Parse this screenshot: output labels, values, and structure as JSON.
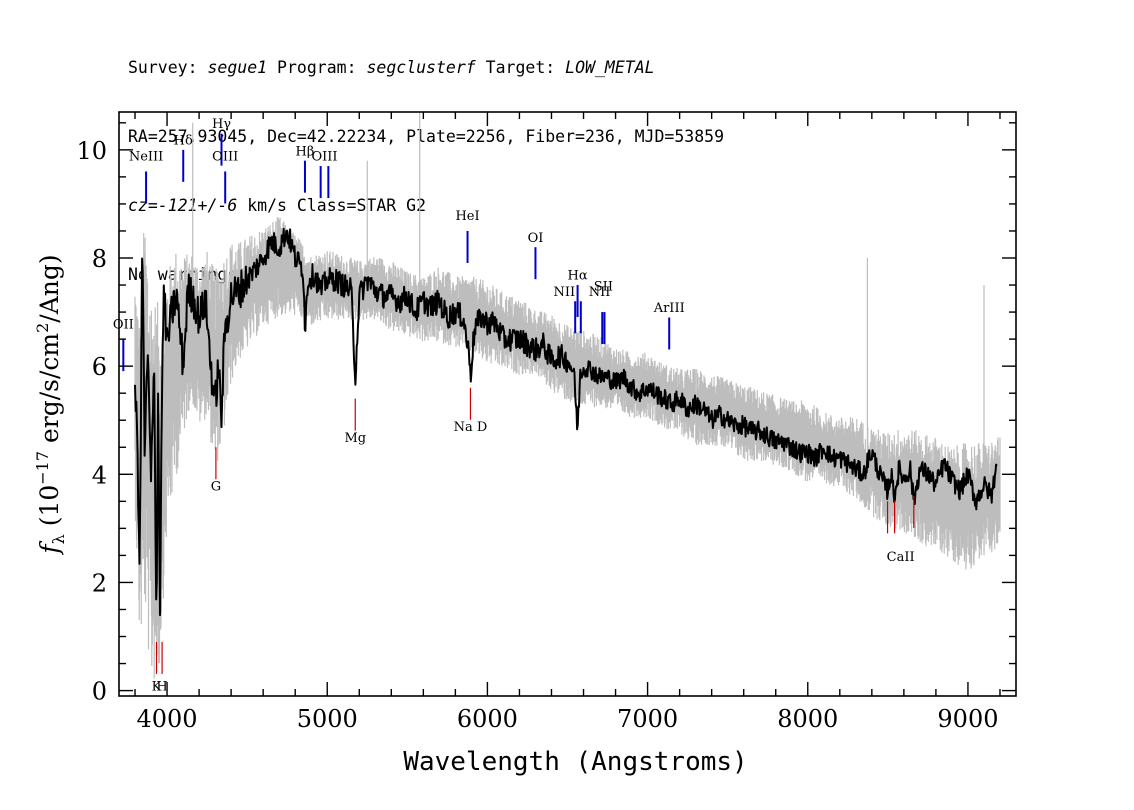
{
  "header": {
    "survey_label": "Survey:",
    "survey": "segue1",
    "program_label": "Program:",
    "program": "segclusterf",
    "target_label": "Target:",
    "target": "LOW_METAL",
    "line2": "RA=257.93045, Dec=42.22234, Plate=2256, Fiber=236, MJD=53859",
    "cz": "cz=-121+/-6",
    "cz_rest": "km/s Class=STAR G2",
    "line4": "No warnings."
  },
  "chart_data": {
    "type": "line",
    "xlabel": "Wavelength (Angstroms)",
    "ylabel_html": "f<tspan font-style='italic'>λ</tspan>",
    "ylabel": "fλ (10^-17 erg/s/cm^2/Ang)",
    "xlim": [
      3700,
      9300
    ],
    "ylim": [
      -0.1,
      10.7
    ],
    "xticks": [
      4000,
      5000,
      6000,
      7000,
      8000,
      9000
    ],
    "yticks": [
      0,
      2,
      4,
      6,
      8,
      10
    ],
    "xtick_labels": [
      "4000",
      "5000",
      "6000",
      "7000",
      "8000",
      "9000"
    ],
    "ytick_labels": [
      "0",
      "2",
      "4",
      "6",
      "8",
      "10"
    ],
    "series": [
      {
        "color": "#bdbdbd",
        "role": "error-envelope",
        "x": [
          3800,
          3830,
          3860,
          3900,
          3950,
          4000,
          4050,
          4100,
          4150,
          4200,
          4250,
          4300,
          4350,
          4400,
          4450,
          4500,
          4600,
          4700,
          4800,
          4900,
          5000,
          5100,
          5200,
          5300,
          5400,
          5500,
          5600,
          5700,
          5800,
          5900,
          6000,
          6100,
          6200,
          6300,
          6400,
          6500,
          6600,
          6700,
          6800,
          6900,
          7000,
          7100,
          7200,
          7300,
          7400,
          7500,
          7600,
          7700,
          7800,
          7900,
          8000,
          8100,
          8200,
          8300,
          8400,
          8500,
          8600,
          8700,
          8800,
          8900,
          9000,
          9100,
          9200
        ],
        "hi": [
          7.6,
          6.6,
          8.6,
          7.2,
          6.8,
          7.5,
          8.0,
          7.9,
          8.0,
          7.8,
          8.0,
          7.6,
          7.9,
          8.2,
          8.2,
          8.3,
          8.5,
          8.7,
          8.4,
          8.0,
          8.1,
          8.0,
          7.9,
          8.0,
          7.9,
          7.7,
          7.6,
          7.8,
          7.6,
          7.6,
          7.5,
          7.3,
          7.2,
          7.0,
          6.9,
          6.7,
          6.6,
          6.5,
          6.3,
          6.2,
          6.2,
          6.0,
          5.9,
          5.9,
          5.8,
          5.7,
          5.6,
          5.5,
          5.4,
          5.3,
          5.3,
          5.1,
          5.0,
          5.0,
          4.8,
          4.7,
          4.8,
          4.7,
          4.6,
          4.4,
          4.5,
          4.5,
          4.6
        ],
        "lo": [
          3.6,
          1.0,
          1.8,
          0.4,
          0.5,
          3.2,
          4.0,
          4.8,
          5.5,
          5.0,
          5.2,
          4.2,
          4.8,
          5.8,
          6.2,
          6.4,
          6.8,
          7.0,
          7.0,
          6.8,
          6.9,
          6.9,
          6.9,
          6.9,
          6.7,
          6.6,
          6.5,
          6.5,
          6.4,
          6.3,
          6.1,
          6.0,
          5.9,
          5.9,
          5.6,
          5.4,
          5.3,
          5.3,
          5.2,
          5.1,
          5.1,
          4.9,
          4.8,
          4.6,
          4.6,
          4.5,
          4.3,
          4.3,
          4.2,
          4.1,
          3.9,
          3.9,
          3.8,
          3.6,
          3.3,
          3.1,
          3.0,
          2.8,
          2.7,
          2.5,
          2.3,
          2.6,
          2.7
        ]
      },
      {
        "color": "#000000",
        "role": "flux",
        "x": [
          3800,
          3815,
          3830,
          3845,
          3860,
          3880,
          3900,
          3920,
          3933,
          3945,
          3955,
          3968,
          3980,
          4000,
          4030,
          4060,
          4101,
          4130,
          4160,
          4200,
          4240,
          4280,
          4300,
          4320,
          4340,
          4360,
          4400,
          4450,
          4500,
          4550,
          4600,
          4650,
          4700,
          4750,
          4800,
          4850,
          4861,
          4880,
          4920,
          4960,
          5000,
          5050,
          5100,
          5150,
          5175,
          5200,
          5250,
          5300,
          5350,
          5400,
          5450,
          5500,
          5550,
          5600,
          5650,
          5700,
          5750,
          5800,
          5850,
          5890,
          5896,
          5920,
          5960,
          6000,
          6050,
          6100,
          6150,
          6200,
          6250,
          6300,
          6350,
          6400,
          6450,
          6500,
          6540,
          6563,
          6580,
          6620,
          6660,
          6700,
          6750,
          6800,
          6850,
          6900,
          6950,
          7000,
          7050,
          7100,
          7150,
          7200,
          7250,
          7300,
          7350,
          7400,
          7450,
          7500,
          7550,
          7600,
          7650,
          7700,
          7750,
          7800,
          7850,
          7900,
          7950,
          8000,
          8050,
          8100,
          8150,
          8200,
          8250,
          8300,
          8350,
          8380,
          8400,
          8450,
          8498,
          8520,
          8542,
          8570,
          8600,
          8640,
          8662,
          8700,
          8750,
          8800,
          8850,
          8900,
          8950,
          9000,
          9050,
          9100,
          9150,
          9180
        ],
        "y": [
          5.7,
          4.5,
          2.2,
          8.5,
          4.5,
          6.2,
          3.8,
          6.1,
          1.2,
          5.8,
          1.1,
          5.5,
          7.4,
          6.4,
          7.0,
          7.3,
          6.0,
          7.4,
          7.3,
          6.9,
          7.2,
          5.8,
          5.3,
          6.0,
          5.1,
          6.6,
          7.3,
          7.4,
          7.6,
          7.8,
          8.0,
          8.3,
          8.2,
          8.5,
          8.0,
          7.8,
          6.7,
          7.6,
          7.7,
          7.4,
          7.6,
          7.6,
          7.5,
          7.4,
          5.8,
          7.3,
          7.6,
          7.4,
          7.3,
          7.3,
          7.2,
          7.3,
          7.0,
          7.2,
          7.1,
          7.2,
          6.9,
          7.0,
          6.9,
          6.1,
          5.9,
          6.7,
          6.9,
          6.8,
          6.8,
          6.5,
          6.5,
          6.5,
          6.4,
          6.3,
          6.4,
          6.1,
          6.2,
          6.1,
          5.9,
          4.8,
          5.9,
          6.0,
          5.9,
          5.8,
          5.8,
          5.7,
          5.8,
          5.6,
          5.5,
          5.6,
          5.5,
          5.4,
          5.3,
          5.4,
          5.2,
          5.3,
          5.2,
          5.0,
          5.1,
          5.0,
          4.9,
          4.9,
          4.8,
          4.8,
          4.7,
          4.6,
          4.6,
          4.5,
          4.4,
          4.4,
          4.3,
          4.5,
          4.3,
          4.3,
          4.2,
          4.1,
          4.0,
          4.3,
          4.4,
          4.0,
          3.7,
          4.0,
          3.6,
          4.1,
          3.9,
          4.1,
          3.5,
          4.1,
          4.0,
          3.8,
          4.2,
          3.9,
          3.7,
          4.0,
          3.5,
          3.8,
          3.6,
          4.3
        ]
      }
    ],
    "emission_lines": [
      {
        "name": "OII",
        "wave": 3727,
        "y": 6.5
      },
      {
        "name": "NeIII",
        "wave": 3869,
        "y": 9.6
      },
      {
        "name": "Hδ",
        "wave": 4101,
        "y": 10.0
      },
      {
        "name": "Hγ",
        "wave": 4340,
        "y": 10.3
      },
      {
        "name": "OIII",
        "wave": 4363,
        "y": 9.6
      },
      {
        "name": "Hβ",
        "wave": 4861,
        "y": 9.8
      },
      {
        "name": "OIII",
        "wave": 4959,
        "y": 9.7
      },
      {
        "name": "OIII",
        "wave": 5007,
        "y": 9.7
      },
      {
        "name": "HeI",
        "wave": 5876,
        "y": 8.5
      },
      {
        "name": "OI",
        "wave": 6300,
        "y": 8.2
      },
      {
        "name": "NII",
        "wave": 6548,
        "y": 7.2
      },
      {
        "name": "Hα",
        "wave": 6563,
        "y": 7.5
      },
      {
        "name": "NII",
        "wave": 6583,
        "y": 7.2
      },
      {
        "name": "SII",
        "wave": 6717,
        "y": 7.0
      },
      {
        "name": "SII",
        "wave": 6731,
        "y": 7.0
      },
      {
        "name": "ArIII",
        "wave": 7135,
        "y": 6.9
      }
    ],
    "emission_labels": [
      {
        "text": "OII",
        "wave": 3727,
        "y": 6.7
      },
      {
        "text": "NeIII",
        "wave": 3869,
        "y": 9.8
      },
      {
        "text": "Hδ",
        "wave": 4101,
        "y": 10.1
      },
      {
        "text": "Hγ",
        "wave": 4340,
        "y": 10.4
      },
      {
        "text": "OIII",
        "wave": 4363,
        "y": 9.8
      },
      {
        "text": "Hβ",
        "wave": 4861,
        "y": 9.9
      },
      {
        "text": "OIII",
        "wave": 4983,
        "y": 9.8
      },
      {
        "text": "HeI",
        "wave": 5876,
        "y": 8.7
      },
      {
        "text": "OI",
        "wave": 6300,
        "y": 8.3
      },
      {
        "text": "NII",
        "wave": 6480,
        "y": 7.3
      },
      {
        "text": "Hα",
        "wave": 6563,
        "y": 7.6
      },
      {
        "text": "NII",
        "wave": 6700,
        "y": 7.3
      },
      {
        "text": "SII",
        "wave": 6724,
        "y": 7.4
      },
      {
        "text": "ArIII",
        "wave": 7135,
        "y": 7.0
      }
    ],
    "absorption_lines": [
      {
        "name": "K",
        "wave": 3934,
        "y": 0.9
      },
      {
        "name": "H",
        "wave": 3969,
        "y": 0.9
      },
      {
        "name": "G",
        "wave": 4305,
        "y": 4.5
      },
      {
        "name": "Mg",
        "wave": 5175,
        "y": 5.4
      },
      {
        "name": "Na D",
        "wave": 5894,
        "y": 5.6
      },
      {
        "name": "CaII",
        "wave": 8498,
        "y": 3.5
      },
      {
        "name": "CaII",
        "wave": 8542,
        "y": 3.5
      },
      {
        "name": "CaII",
        "wave": 8662,
        "y": 3.6
      }
    ],
    "absorption_labels": [
      {
        "text": "K",
        "wave": 3934,
        "y": 0.0
      },
      {
        "text": "H",
        "wave": 3969,
        "y": 0.0
      },
      {
        "text": "G",
        "wave": 4305,
        "y": 3.7
      },
      {
        "text": "Mg",
        "wave": 5175,
        "y": 4.6
      },
      {
        "text": "Na D",
        "wave": 5894,
        "y": 4.8
      },
      {
        "text": "CaII",
        "wave": 8580,
        "y": 2.4
      }
    ],
    "colors": {
      "emission": "#0000cc",
      "absorption": "#cc0000",
      "axes": "#000000"
    }
  }
}
